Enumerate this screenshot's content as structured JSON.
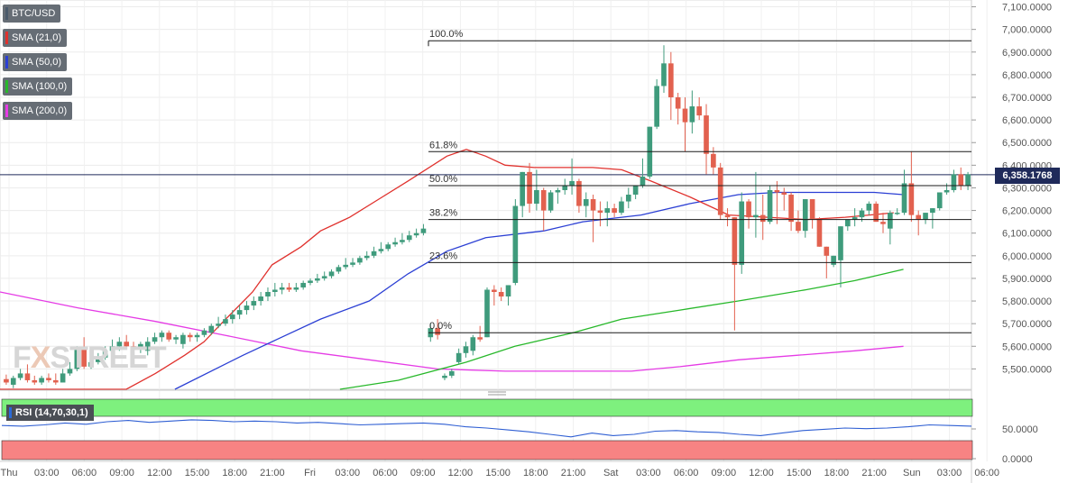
{
  "symbol_label": "BTC/USD",
  "legend": [
    {
      "label": "SMA (21,0)",
      "color": "#e0312d"
    },
    {
      "label": "SMA (50,0)",
      "color": "#2b3fd4"
    },
    {
      "label": "SMA (100,0)",
      "color": "#27b82a"
    },
    {
      "label": "SMA (200,0)",
      "color": "#e53be5"
    }
  ],
  "current_price_label": "6,358.1768",
  "rsi_label": "RSI (14,70,30,1)",
  "watermark": {
    "fx": "F",
    "x": "X",
    "rest": "STREET"
  },
  "colors": {
    "up": "#3f9b7c",
    "down": "#e2614f",
    "rsi_high_zone": "#7ef07e",
    "rsi_low_zone": "#f78383",
    "rsi_line": "#2f5fd3",
    "fib_line": "#1a1a1a"
  },
  "chart_data": {
    "type": "candlestick",
    "ylim": [
      5410,
      7130
    ],
    "y_ticks": [
      "7,100.0000",
      "7,000.0000",
      "6,900.0000",
      "6,800.0000",
      "6,700.0000",
      "6,600.0000",
      "6,500.0000",
      "6,400.0000",
      "6,300.0000",
      "6,200.0000",
      "6,100.0000",
      "6,000.0000",
      "5,900.0000",
      "5,800.0000",
      "5,700.0000",
      "5,600.0000",
      "5,500.0000"
    ],
    "y_tick_values": [
      7100,
      7000,
      6900,
      6800,
      6700,
      6600,
      6500,
      6400,
      6300,
      6200,
      6100,
      6000,
      5900,
      5800,
      5700,
      5600,
      5500
    ],
    "x_ticks": [
      "Thu",
      "03:00",
      "06:00",
      "09:00",
      "12:00",
      "15:00",
      "18:00",
      "21:00",
      "Fri",
      "03:00",
      "06:00",
      "09:00",
      "12:00",
      "15:00",
      "18:00",
      "21:00",
      "Sat",
      "03:00",
      "06:00",
      "09:00",
      "12:00",
      "15:00",
      "18:00",
      "21:00",
      "Sun",
      "03:00",
      "06:00"
    ],
    "candles": [
      [
        5455,
        5475,
        5440,
        5430
      ],
      [
        5430,
        5470,
        5460,
        5415
      ],
      [
        5460,
        5500,
        5480,
        5450
      ],
      [
        5480,
        5520,
        5450,
        5440
      ],
      [
        5450,
        5470,
        5440,
        5430
      ],
      [
        5440,
        5470,
        5460,
        5430
      ],
      [
        5460,
        5480,
        5450,
        5440
      ],
      [
        5450,
        5480,
        5440,
        5430
      ],
      [
        5440,
        5500,
        5480,
        5440
      ],
      [
        5480,
        5530,
        5500,
        5470
      ],
      [
        5500,
        5600,
        5590,
        5490
      ],
      [
        5590,
        5640,
        5510,
        5500
      ],
      [
        5510,
        5560,
        5530,
        5500
      ],
      [
        5530,
        5570,
        5550,
        5520
      ],
      [
        5550,
        5600,
        5580,
        5540
      ],
      [
        5580,
        5630,
        5600,
        5560
      ],
      [
        5600,
        5640,
        5620,
        5580
      ],
      [
        5620,
        5650,
        5600,
        5590
      ],
      [
        5600,
        5620,
        5590,
        5560
      ],
      [
        5590,
        5620,
        5610,
        5570
      ],
      [
        5580,
        5640,
        5620,
        5560
      ],
      [
        5620,
        5660,
        5640,
        5610
      ],
      [
        5640,
        5670,
        5660,
        5620
      ],
      [
        5660,
        5670,
        5630,
        5620
      ],
      [
        5630,
        5650,
        5640,
        5610
      ],
      [
        5610,
        5660,
        5650,
        5590
      ],
      [
        5650,
        5660,
        5640,
        5620
      ],
      [
        5640,
        5660,
        5650,
        5620
      ],
      [
        5650,
        5680,
        5670,
        5640
      ],
      [
        5660,
        5700,
        5690,
        5650
      ],
      [
        5690,
        5730,
        5700,
        5680
      ],
      [
        5700,
        5740,
        5720,
        5690
      ],
      [
        5720,
        5760,
        5740,
        5700
      ],
      [
        5740,
        5780,
        5760,
        5720
      ],
      [
        5760,
        5800,
        5780,
        5740
      ],
      [
        5780,
        5820,
        5800,
        5760
      ],
      [
        5800,
        5840,
        5820,
        5780
      ],
      [
        5820,
        5860,
        5840,
        5800
      ],
      [
        5840,
        5880,
        5850,
        5820
      ],
      [
        5850,
        5880,
        5860,
        5830
      ],
      [
        5860,
        5880,
        5850,
        5840
      ],
      [
        5850,
        5880,
        5860,
        5840
      ],
      [
        5860,
        5890,
        5880,
        5850
      ],
      [
        5880,
        5900,
        5890,
        5870
      ],
      [
        5890,
        5920,
        5900,
        5880
      ],
      [
        5900,
        5930,
        5910,
        5890
      ],
      [
        5910,
        5940,
        5930,
        5900
      ],
      [
        5930,
        5960,
        5950,
        5920
      ],
      [
        5950,
        5990,
        5960,
        5940
      ],
      [
        5960,
        5990,
        5970,
        5950
      ],
      [
        5970,
        6000,
        5990,
        5960
      ],
      [
        5990,
        6020,
        6000,
        5980
      ],
      [
        6000,
        6040,
        6020,
        5990
      ],
      [
        6020,
        6060,
        6030,
        6010
      ],
      [
        6030,
        6060,
        6050,
        6020
      ],
      [
        6050,
        6080,
        6060,
        6040
      ],
      [
        6060,
        6100,
        6070,
        6050
      ],
      [
        6070,
        6110,
        6090,
        6060
      ],
      [
        6090,
        6120,
        6100,
        6080
      ],
      [
        6100,
        6140,
        6120,
        6090
      ],
      [
        5640,
        5700,
        5680,
        5620
      ],
      [
        5680,
        5720,
        5650,
        5630
      ],
      [
        5460,
        5480,
        5470,
        5450
      ],
      [
        5470,
        5500,
        5490,
        5460
      ],
      [
        5530,
        5590,
        5570,
        5520
      ],
      [
        5570,
        5620,
        5600,
        5550
      ],
      [
        5580,
        5650,
        5640,
        5560
      ],
      [
        5640,
        5690,
        5630,
        5620
      ],
      [
        5640,
        5860,
        5850,
        5640
      ],
      [
        5850,
        5870,
        5840,
        5780
      ],
      [
        5840,
        5860,
        5820,
        5800
      ],
      [
        5820,
        5870,
        5870,
        5780
      ],
      [
        5880,
        6250,
        6220,
        5870
      ],
      [
        6220,
        6240,
        6370,
        6170
      ],
      [
        6370,
        6410,
        6230,
        6190
      ],
      [
        6230,
        6380,
        6290,
        6200
      ],
      [
        6290,
        6300,
        6200,
        6110
      ],
      [
        6200,
        6290,
        6280,
        6190
      ],
      [
        6280,
        6300,
        6290,
        6230
      ],
      [
        6290,
        6340,
        6310,
        6270
      ],
      [
        6310,
        6430,
        6330,
        6270
      ],
      [
        6330,
        6340,
        6220,
        6190
      ],
      [
        6220,
        6280,
        6250,
        6170
      ],
      [
        6250,
        6270,
        6200,
        6060
      ],
      [
        6200,
        6240,
        6190,
        6130
      ],
      [
        6190,
        6240,
        6210,
        6130
      ],
      [
        6210,
        6230,
        6190,
        6170
      ],
      [
        6190,
        6260,
        6240,
        6180
      ],
      [
        6240,
        6300,
        6270,
        6210
      ],
      [
        6270,
        6300,
        6310,
        6250
      ],
      [
        6310,
        6430,
        6350,
        6300
      ],
      [
        6350,
        6350,
        6570,
        6340
      ],
      [
        6570,
        6780,
        6750,
        6560
      ],
      [
        6750,
        6930,
        6850,
        6720
      ],
      [
        6850,
        6900,
        6700,
        6600
      ],
      [
        6700,
        6720,
        6650,
        6580
      ],
      [
        6650,
        6700,
        6590,
        6460
      ],
      [
        6590,
        6730,
        6660,
        6540
      ],
      [
        6660,
        6700,
        6620,
        6600
      ],
      [
        6620,
        6670,
        6450,
        6360
      ],
      [
        6450,
        6480,
        6390,
        6360
      ],
      [
        6390,
        6410,
        6180,
        6160
      ],
      [
        6180,
        6210,
        6170,
        6130
      ],
      [
        6170,
        6170,
        5960,
        5670
      ],
      [
        5960,
        6280,
        6240,
        5920
      ],
      [
        6240,
        6250,
        6170,
        6120
      ],
      [
        6170,
        6370,
        6180,
        6080
      ],
      [
        6180,
        6270,
        6150,
        6070
      ],
      [
        6150,
        6310,
        6290,
        6140
      ],
      [
        6290,
        6330,
        6280,
        6140
      ],
      [
        6280,
        6300,
        6270,
        6200
      ],
      [
        6270,
        6280,
        6150,
        6110
      ],
      [
        6150,
        6200,
        6110,
        6100
      ],
      [
        6110,
        6170,
        6250,
        6080
      ],
      [
        6250,
        6240,
        6160,
        6120
      ],
      [
        6160,
        6170,
        6040,
        6040
      ],
      [
        6040,
        6020,
        6000,
        5900
      ],
      [
        5960,
        5990,
        6000,
        5950
      ],
      [
        5980,
        6130,
        6130,
        5860
      ],
      [
        6130,
        6160,
        6160,
        6110
      ],
      [
        6160,
        6210,
        6170,
        6130
      ],
      [
        6170,
        6210,
        6200,
        6150
      ],
      [
        6200,
        6240,
        6230,
        6180
      ],
      [
        6230,
        6240,
        6150,
        6150
      ],
      [
        6150,
        6190,
        6140,
        6100
      ],
      [
        6120,
        6200,
        6190,
        6050
      ],
      [
        6190,
        6210,
        6190,
        6180
      ],
      [
        6190,
        6380,
        6320,
        6180
      ],
      [
        6320,
        6460,
        6180,
        6150
      ],
      [
        6180,
        6200,
        6160,
        6090
      ],
      [
        6160,
        6180,
        6190,
        6140
      ],
      [
        6190,
        6210,
        6210,
        6120
      ],
      [
        6210,
        6280,
        6280,
        6200
      ],
      [
        6280,
        6320,
        6290,
        6270
      ],
      [
        6290,
        6380,
        6360,
        6280
      ],
      [
        6360,
        6390,
        6310,
        6290
      ],
      [
        6310,
        6370,
        6360,
        6290
      ]
    ],
    "sma21": [
      [
        0,
        5410
      ],
      [
        0.13,
        5410
      ],
      [
        0.16,
        5480
      ],
      [
        0.19,
        5560
      ],
      [
        0.21,
        5620
      ],
      [
        0.23,
        5710
      ],
      [
        0.26,
        5840
      ],
      [
        0.28,
        5960
      ],
      [
        0.31,
        6040
      ],
      [
        0.33,
        6110
      ],
      [
        0.36,
        6170
      ],
      [
        0.39,
        6250
      ],
      [
        0.42,
        6330
      ],
      [
        0.46,
        6440
      ],
      [
        0.48,
        6470
      ],
      [
        0.5,
        6440
      ],
      [
        0.52,
        6400
      ],
      [
        0.55,
        6390
      ],
      [
        0.58,
        6390
      ],
      [
        0.61,
        6390
      ],
      [
        0.64,
        6380
      ],
      [
        0.67,
        6330
      ],
      [
        0.71,
        6260
      ],
      [
        0.75,
        6180
      ],
      [
        0.79,
        6170
      ],
      [
        0.83,
        6160
      ],
      [
        0.87,
        6170
      ],
      [
        0.92,
        6190
      ]
    ],
    "sma50": [
      [
        0.18,
        5410
      ],
      [
        0.25,
        5560
      ],
      [
        0.29,
        5640
      ],
      [
        0.33,
        5720
      ],
      [
        0.38,
        5800
      ],
      [
        0.42,
        5920
      ],
      [
        0.46,
        6020
      ],
      [
        0.5,
        6080
      ],
      [
        0.56,
        6110
      ],
      [
        0.6,
        6150
      ],
      [
        0.66,
        6180
      ],
      [
        0.71,
        6230
      ],
      [
        0.76,
        6270
      ],
      [
        0.8,
        6280
      ],
      [
        0.85,
        6280
      ],
      [
        0.9,
        6280
      ],
      [
        0.93,
        6270
      ]
    ],
    "sma100": [
      [
        0.35,
        5410
      ],
      [
        0.41,
        5450
      ],
      [
        0.48,
        5530
      ],
      [
        0.53,
        5600
      ],
      [
        0.59,
        5660
      ],
      [
        0.64,
        5720
      ],
      [
        0.7,
        5760
      ],
      [
        0.76,
        5800
      ],
      [
        0.83,
        5850
      ],
      [
        0.88,
        5890
      ],
      [
        0.93,
        5940
      ]
    ],
    "sma200": [
      [
        0,
        5840
      ],
      [
        0.08,
        5770
      ],
      [
        0.16,
        5710
      ],
      [
        0.23,
        5650
      ],
      [
        0.31,
        5580
      ],
      [
        0.38,
        5540
      ],
      [
        0.45,
        5500
      ],
      [
        0.52,
        5490
      ],
      [
        0.58,
        5490
      ],
      [
        0.65,
        5490
      ],
      [
        0.7,
        5510
      ],
      [
        0.76,
        5540
      ],
      [
        0.82,
        5560
      ],
      [
        0.88,
        5580
      ],
      [
        0.93,
        5600
      ]
    ],
    "fibonacci": [
      {
        "label": "100.0%",
        "value": 6950
      },
      {
        "label": "61.8%",
        "value": 6460
      },
      {
        "label": "50.0%",
        "value": 6310
      },
      {
        "label": "38.2%",
        "value": 6160
      },
      {
        "label": "23.6%",
        "value": 5970
      },
      {
        "label": "0.0%",
        "value": 5660
      }
    ],
    "current_price": 6358.1768,
    "rsi": {
      "ylim": [
        0,
        100
      ],
      "y_ticks": [
        "50.0000",
        "0.0000"
      ],
      "y_tick_values": [
        50,
        0
      ],
      "high_level": 70,
      "low_level": 30,
      "values": [
        54,
        53,
        55,
        58,
        56,
        60,
        62,
        59,
        61,
        63,
        62,
        60,
        61,
        60,
        58,
        59,
        57,
        55,
        56,
        57,
        58,
        56,
        52,
        50,
        47,
        44,
        40,
        36,
        42,
        38,
        40,
        45,
        46,
        44,
        43,
        40,
        38,
        42,
        46,
        48,
        50,
        49,
        50,
        52,
        55,
        54,
        53
      ]
    }
  }
}
